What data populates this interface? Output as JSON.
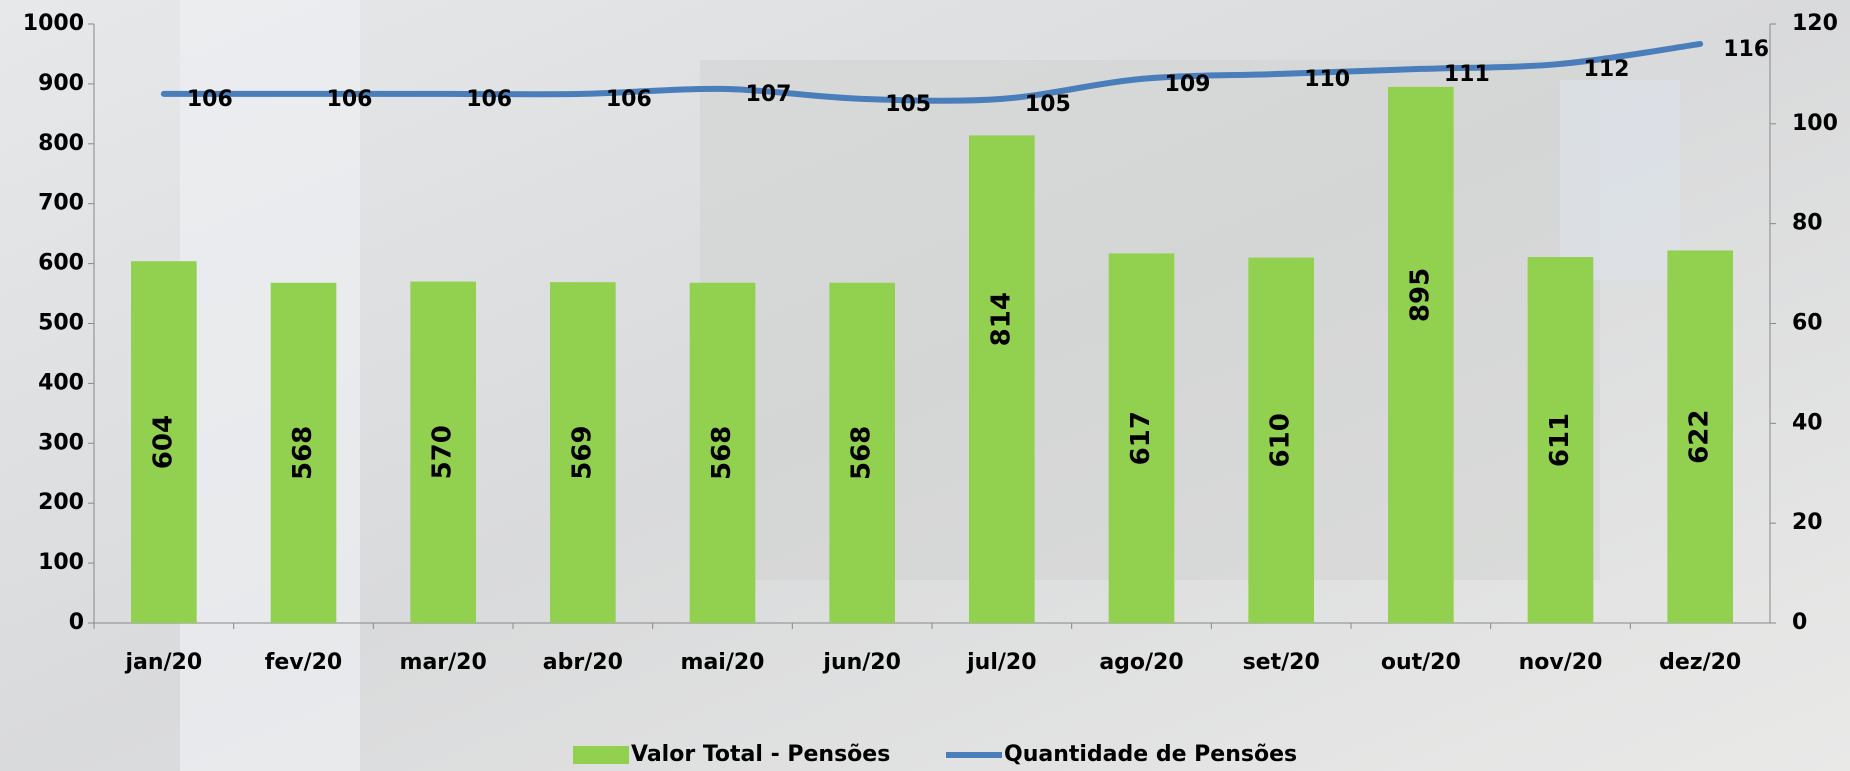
{
  "chart_data": {
    "type": "bar",
    "categories": [
      "jan/20",
      "fev/20",
      "mar/20",
      "abr/20",
      "mai/20",
      "jun/20",
      "jul/20",
      "ago/20",
      "set/20",
      "out/20",
      "nov/20",
      "dez/20"
    ],
    "series": [
      {
        "name": "Valor Total - Pensões",
        "color": "#92d050",
        "type": "bar",
        "values": [
          604,
          568,
          570,
          569,
          568,
          568,
          814,
          617,
          610,
          895,
          611,
          622
        ]
      },
      {
        "name": "Quantidade de Pensões",
        "color": "#4a7ebb",
        "type": "line",
        "axis": "y2",
        "values": [
          106,
          106,
          106,
          106,
          107,
          105,
          105,
          109,
          110,
          111,
          112,
          116
        ]
      }
    ],
    "ylim": [
      0,
      1000
    ],
    "yticks": [
      0,
      100,
      200,
      300,
      400,
      500,
      600,
      700,
      800,
      900,
      1000
    ],
    "y2lim": [
      0,
      120
    ],
    "y2ticks": [
      0,
      20,
      40,
      60,
      80,
      100,
      120
    ],
    "legend": "bottom"
  }
}
